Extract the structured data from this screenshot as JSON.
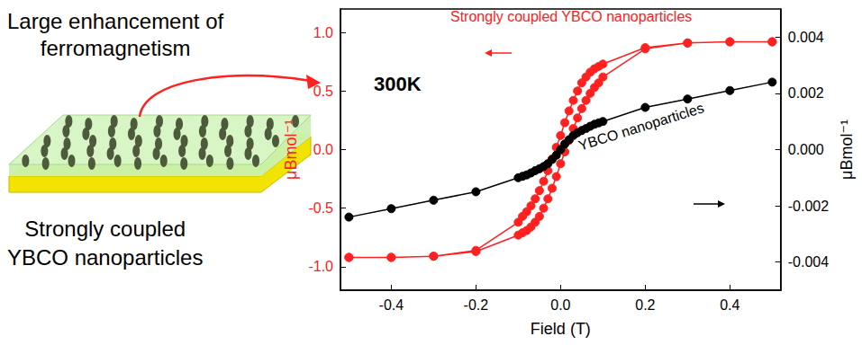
{
  "chart_data": {
    "type": "line",
    "x_label": "Field (T)",
    "y_label": "μBmol⁻¹",
    "y2_label": "μBmol⁻¹",
    "xlim": [
      -0.52,
      0.52
    ],
    "xticks": [
      -0.4,
      -0.2,
      {
        "value": 0,
        "label": "0.0"
      },
      0.2,
      0.4
    ],
    "ylim": [
      -1.2,
      1.2
    ],
    "yticks": [
      {
        "value": -1,
        "label": "-1.0"
      },
      -0.5,
      {
        "value": 0,
        "label": "0.0"
      },
      0.5,
      {
        "value": 1,
        "label": "1.0"
      }
    ],
    "y2lim": [
      -0.005,
      0.005
    ],
    "y2ticks": [
      -0.004,
      -0.002,
      {
        "value": 0,
        "label": "0.000"
      },
      0.002,
      0.004
    ],
    "grid": false,
    "annotations": [
      "300K"
    ],
    "series": [
      {
        "name": "Strongly coupled YBCO nanoparticles",
        "color": "#ff2020",
        "marker": "circle",
        "line_style": "solid",
        "axis": "y",
        "x": [
          0.5,
          0.4,
          0.3,
          0.2,
          0.1,
          0.09,
          0.08,
          0.07,
          0.06,
          0.05,
          0.04,
          0.03,
          0.02,
          0.01,
          0,
          -0.01,
          -0.02,
          -0.03,
          -0.04,
          -0.05,
          -0.06,
          -0.07,
          -0.08,
          -0.09,
          -0.1,
          -0.2,
          -0.3,
          -0.4,
          -0.5,
          -0.5,
          -0.4,
          -0.3,
          -0.2,
          -0.1,
          -0.09,
          -0.08,
          -0.07,
          -0.06,
          -0.05,
          -0.04,
          -0.03,
          -0.02,
          -0.01,
          0,
          0.01,
          0.02,
          0.03,
          0.04,
          0.05,
          0.06,
          0.07,
          0.08,
          0.09,
          0.1,
          0.2,
          0.3,
          0.4,
          0.5
        ],
        "values": [
          0.92,
          0.92,
          0.91,
          0.87,
          0.73,
          0.71,
          0.69,
          0.66,
          0.62,
          0.57,
          0.5,
          0.42,
          0.33,
          0.23,
          0.12,
          0.02,
          -0.08,
          -0.18,
          -0.27,
          -0.35,
          -0.42,
          -0.48,
          -0.53,
          -0.57,
          -0.62,
          -0.86,
          -0.91,
          -0.92,
          -0.92,
          -0.92,
          -0.92,
          -0.91,
          -0.87,
          -0.73,
          -0.71,
          -0.69,
          -0.66,
          -0.62,
          -0.57,
          -0.5,
          -0.42,
          -0.33,
          -0.23,
          -0.12,
          -0.02,
          0.08,
          0.18,
          0.27,
          0.35,
          0.42,
          0.48,
          0.53,
          0.57,
          0.62,
          0.86,
          0.91,
          0.92,
          0.92
        ]
      },
      {
        "name": "YBCO nanoparticles",
        "color": "#000000",
        "marker": "circle",
        "line_style": "solid",
        "axis": "y2",
        "x": [
          -0.5,
          -0.4,
          -0.3,
          -0.2,
          -0.1,
          -0.09,
          -0.08,
          -0.07,
          -0.06,
          -0.05,
          -0.04,
          -0.03,
          -0.02,
          -0.01,
          0,
          0.01,
          0.02,
          0.03,
          0.04,
          0.05,
          0.06,
          0.07,
          0.08,
          0.09,
          0.1,
          0.2,
          0.3,
          0.4,
          0.5
        ],
        "values": [
          -0.0024,
          -0.0021,
          -0.0018,
          -0.0015,
          -0.001,
          -0.00095,
          -0.0009,
          -0.00083,
          -0.00075,
          -0.00068,
          -0.0006,
          -0.0005,
          -0.00035,
          -0.0002,
          0,
          0.0002,
          0.00035,
          0.0005,
          0.0006,
          0.00068,
          0.00075,
          0.00083,
          0.0009,
          0.00095,
          0.001,
          0.0015,
          0.0018,
          0.0021,
          0.0024
        ]
      }
    ]
  },
  "illustration": {
    "title": "Large enhancement of\nferromagnetism",
    "caption": "Strongly coupled\nYBCO nanoparticles"
  }
}
